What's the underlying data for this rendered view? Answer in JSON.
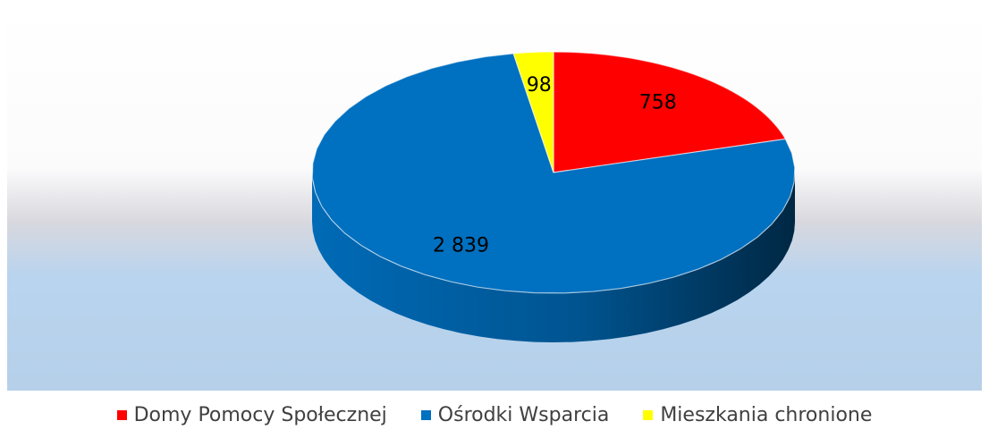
{
  "chart_data": {
    "type": "pie",
    "categories": [
      "Domy Pomocy Społecznej",
      "Ośrodki Wsparcia",
      "Mieszkania chronione"
    ],
    "values": [
      758,
      2839,
      98
    ],
    "value_labels": [
      "758",
      "2 839",
      "98"
    ],
    "colors": [
      "#ff0000",
      "#0070c0",
      "#ffff00"
    ],
    "legend": "bottom"
  }
}
